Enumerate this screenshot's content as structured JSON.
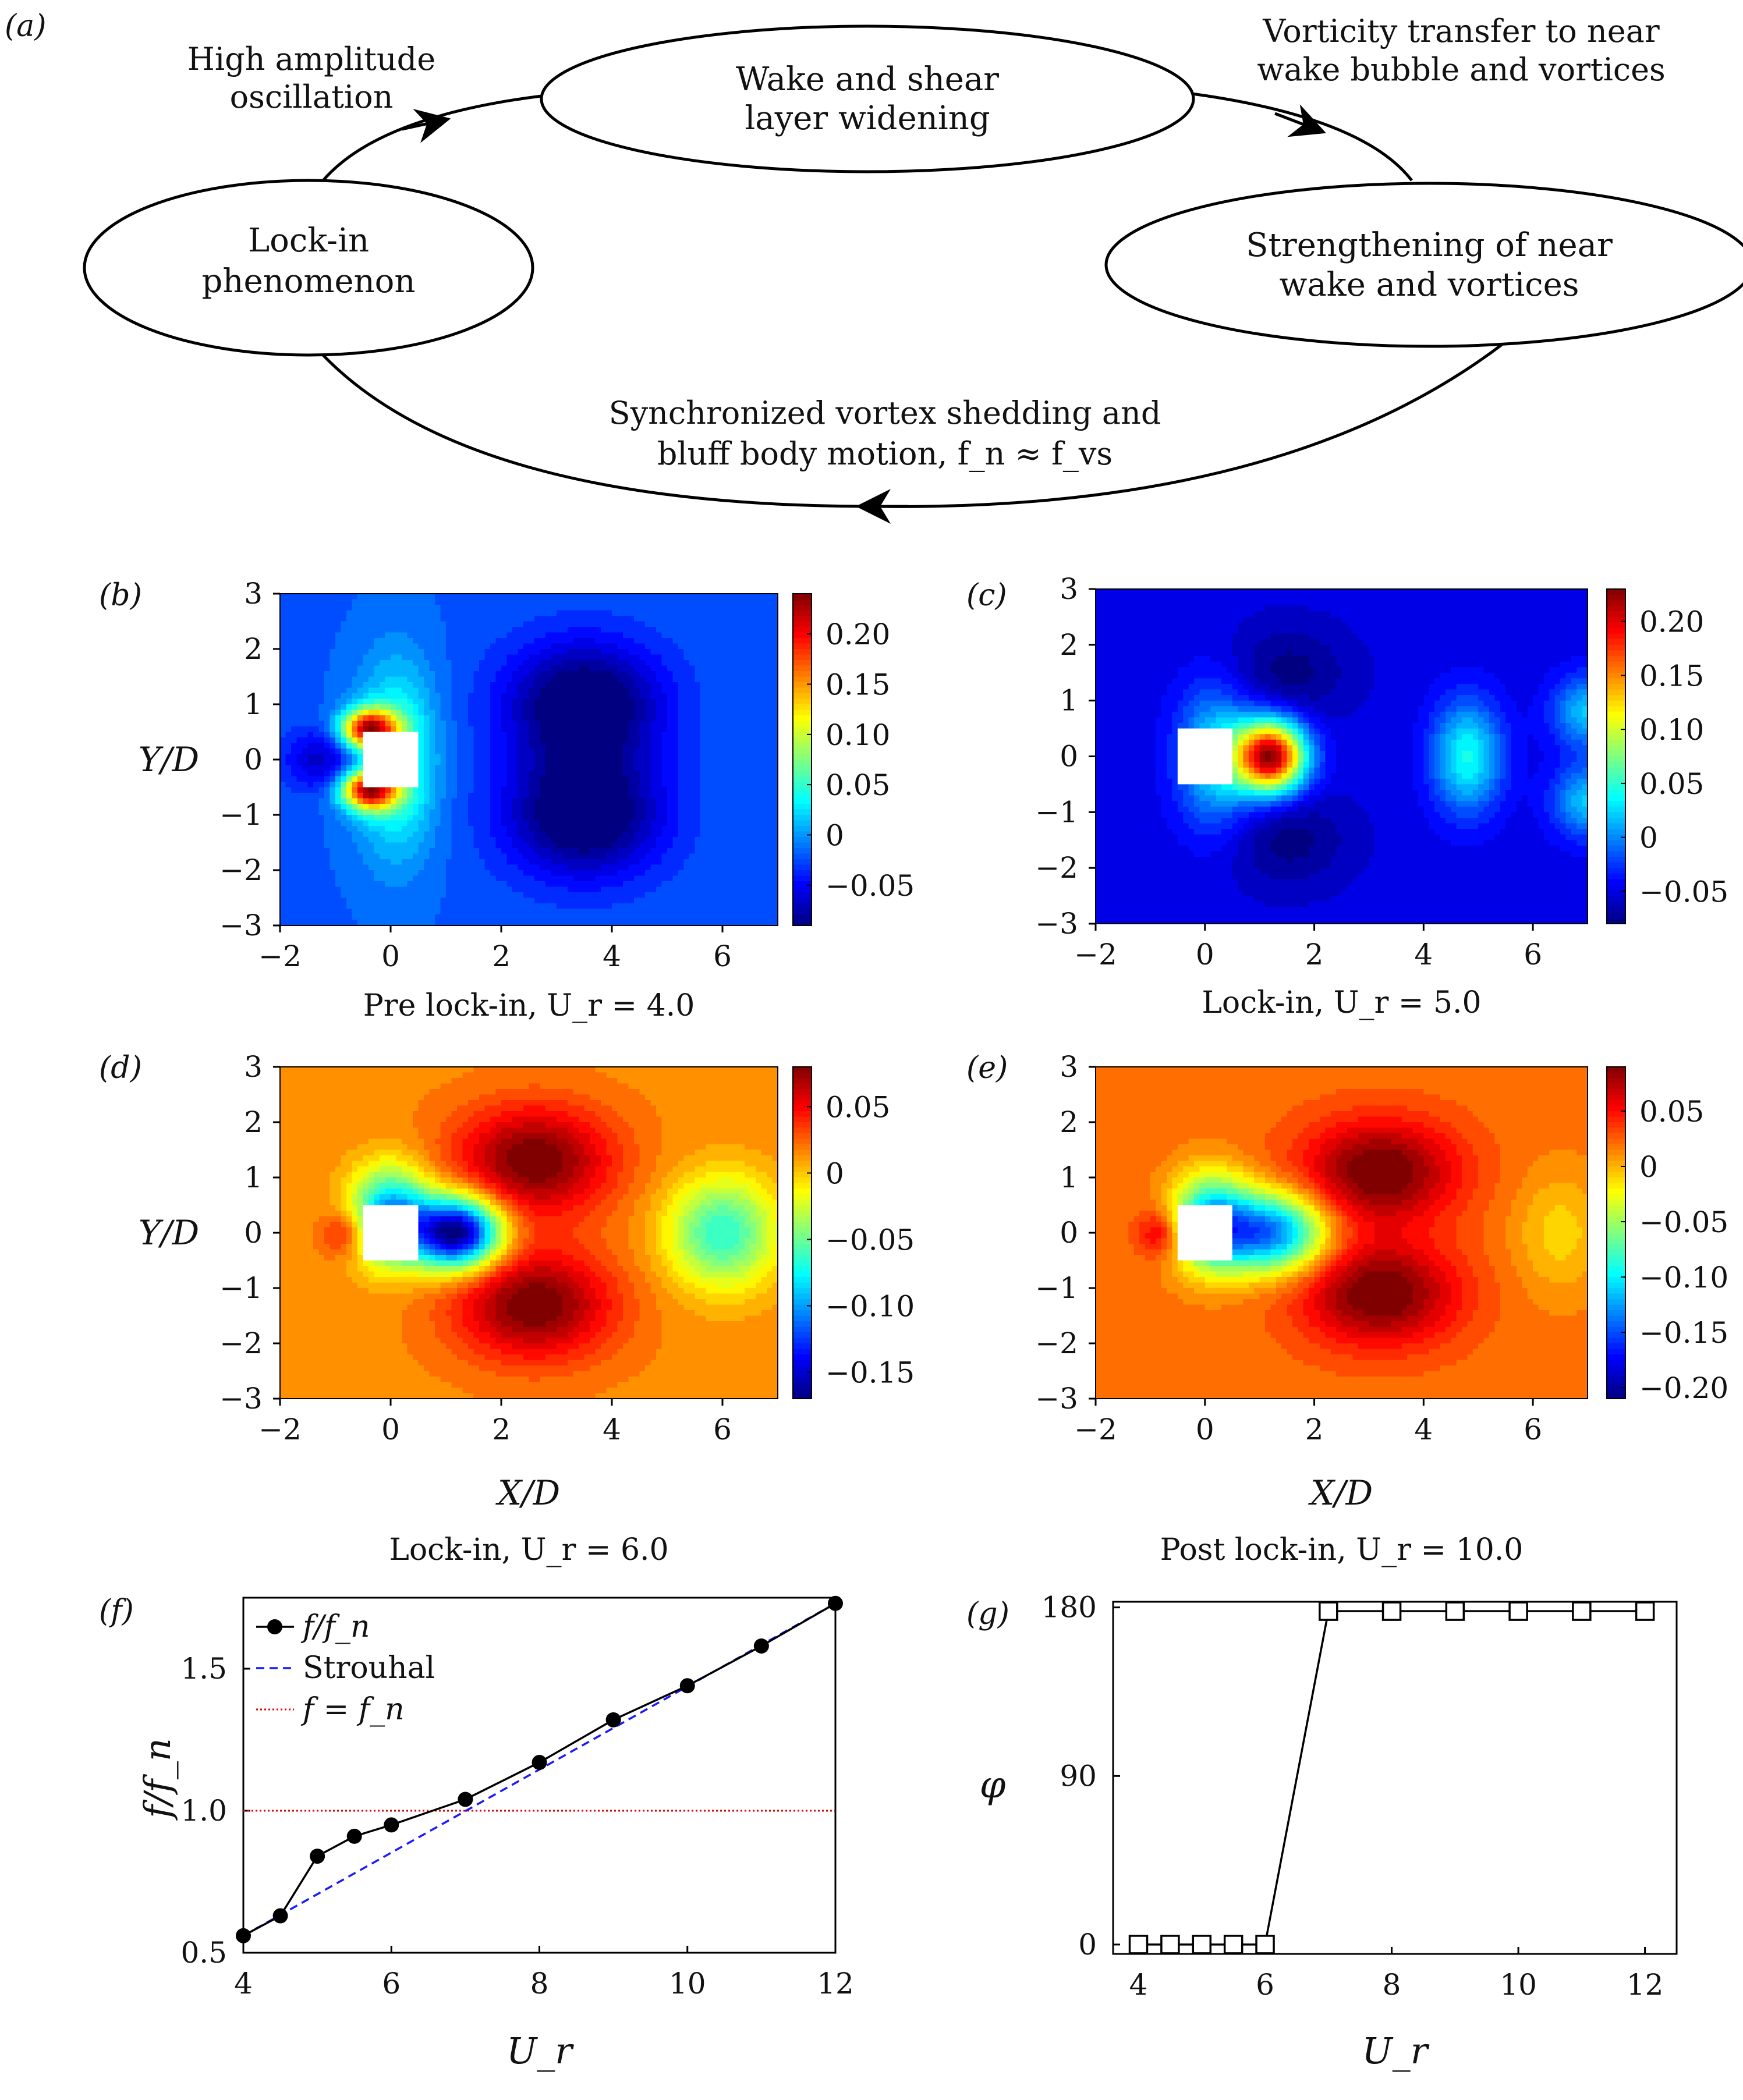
{
  "panel_labels": [
    "(a)",
    "(b)",
    "(c)",
    "(d)",
    "(e)",
    "(f)",
    "(g)"
  ],
  "cycle_diagram": {
    "nodes": [
      {
        "id": "top",
        "lines": [
          "Wake and shear",
          "layer widening"
        ]
      },
      {
        "id": "right",
        "lines": [
          "Strengthening of near",
          "wake and vortices"
        ]
      },
      {
        "id": "left",
        "lines": [
          "Lock-in",
          "phenomenon"
        ]
      }
    ],
    "edge_labels": {
      "left_to_top": [
        "High amplitude",
        "oscillation"
      ],
      "top_to_right": [
        "Vorticity transfer to near",
        "wake bubble and vortices"
      ],
      "right_to_left": [
        "Synchronized vortex shedding and",
        "bluff body motion, f_n ≈ f_vs"
      ]
    }
  },
  "chart_data": [
    {
      "id": "b",
      "type": "heatmap",
      "caption": "Pre lock-in, U_r = 4.0",
      "xlabel": "",
      "ylabel": "Y/D",
      "xlim": [
        -2,
        7
      ],
      "ylim": [
        -3,
        3
      ],
      "x_ticks": [
        "−2",
        "0",
        "2",
        "4",
        "6"
      ],
      "y_ticks": [
        "3",
        "2",
        "1",
        "0",
        "−1",
        "−2",
        "−3"
      ],
      "colorbar": {
        "range": [
          -0.09,
          0.24
        ],
        "ticks": [
          "0.20",
          "0.15",
          "0.10",
          "0.05",
          "0",
          "−0.05"
        ],
        "tick_values": [
          0.2,
          0.15,
          0.1,
          0.05,
          0,
          -0.05
        ]
      },
      "body": "square cylinder centered at (0,0), side 1"
    },
    {
      "id": "c",
      "type": "heatmap",
      "caption": "Lock-in, U_r = 5.0",
      "xlabel": "",
      "ylabel": "",
      "xlim": [
        -2,
        7
      ],
      "ylim": [
        -3,
        3
      ],
      "x_ticks": [
        "−2",
        "0",
        "2",
        "4",
        "6"
      ],
      "y_ticks": [
        "3",
        "2",
        "1",
        "0",
        "−1",
        "−2",
        "−3"
      ],
      "colorbar": {
        "range": [
          -0.08,
          0.23
        ],
        "ticks": [
          "0.20",
          "0.15",
          "0.10",
          "0.05",
          "0",
          "−0.05"
        ],
        "tick_values": [
          0.2,
          0.15,
          0.1,
          0.05,
          0,
          -0.05
        ]
      }
    },
    {
      "id": "d",
      "type": "heatmap",
      "caption": "Lock-in, U_r = 6.0",
      "xlabel": "X/D",
      "ylabel": "Y/D",
      "xlim": [
        -2,
        7
      ],
      "ylim": [
        -3,
        3
      ],
      "x_ticks": [
        "−2",
        "0",
        "2",
        "4",
        "6"
      ],
      "y_ticks": [
        "3",
        "2",
        "1",
        "0",
        "−1",
        "−2",
        "−3"
      ],
      "colorbar": {
        "range": [
          -0.17,
          0.08
        ],
        "ticks": [
          "0.05",
          "0",
          "−0.05",
          "−0.10",
          "−0.15"
        ],
        "tick_values": [
          0.05,
          0,
          -0.05,
          -0.1,
          -0.15
        ]
      }
    },
    {
      "id": "e",
      "type": "heatmap",
      "caption": "Post lock-in, U_r = 10.0",
      "xlabel": "X/D",
      "ylabel": "",
      "xlim": [
        -2,
        7
      ],
      "ylim": [
        -3,
        3
      ],
      "x_ticks": [
        "−2",
        "0",
        "2",
        "4",
        "6"
      ],
      "y_ticks": [
        "3",
        "2",
        "1",
        "0",
        "−1",
        "−2",
        "−3"
      ],
      "colorbar": {
        "range": [
          -0.21,
          0.09
        ],
        "ticks": [
          "0.05",
          "0",
          "−0.05",
          "−0.10",
          "−0.15",
          "−0.20"
        ],
        "tick_values": [
          0.05,
          0,
          -0.05,
          -0.1,
          -0.15,
          -0.2
        ]
      }
    },
    {
      "id": "f",
      "type": "line",
      "xlabel": "U_r",
      "ylabel": "f/f_n",
      "xlim": [
        4,
        12
      ],
      "ylim": [
        0.5,
        1.75
      ],
      "x_ticks": [
        4,
        6,
        8,
        10,
        12
      ],
      "y_ticks": [
        0.5,
        1.0,
        1.5
      ],
      "y_tick_labels": [
        "0.5",
        "1.0",
        "1.5"
      ],
      "legend": {
        "placement": "top-left",
        "entries": [
          "f/f_n",
          "Strouhal",
          "f = f_n"
        ]
      },
      "series": [
        {
          "name": "f/f_n",
          "color": "#000000",
          "marker": "filled-circle",
          "x": [
            4,
            4.5,
            5,
            5.5,
            6,
            7,
            8,
            9,
            10,
            11,
            12
          ],
          "y": [
            0.56,
            0.63,
            0.84,
            0.91,
            0.95,
            1.04,
            1.17,
            1.32,
            1.44,
            1.58,
            1.73
          ]
        },
        {
          "name": "Strouhal",
          "color": "#1a1aff",
          "style": "dashed",
          "x": [
            4,
            12
          ],
          "y": [
            0.56,
            1.73
          ]
        },
        {
          "name": "f = f_n",
          "color": "#e00000",
          "style": "dotted",
          "x": [
            4,
            12
          ],
          "y": [
            1.0,
            1.0
          ]
        }
      ]
    },
    {
      "id": "g",
      "type": "line",
      "xlabel": "U_r",
      "ylabel": "φ",
      "xlim": [
        3.6,
        12.5
      ],
      "ylim": [
        -5,
        183
      ],
      "x_ticks": [
        4,
        6,
        8,
        10,
        12
      ],
      "y_ticks": [
        0,
        90,
        180
      ],
      "series": [
        {
          "name": "",
          "color": "#000000",
          "marker": "open-square",
          "x": [
            4,
            4.5,
            5,
            5.5,
            6,
            7,
            8,
            9,
            10,
            11,
            12
          ],
          "y": [
            0,
            0,
            0,
            0,
            0,
            178,
            178,
            178,
            178,
            178,
            178
          ]
        }
      ]
    }
  ],
  "colors": {
    "jet_low": "#00007f",
    "jet_mid": "#7fff7f",
    "jet_high": "#7f0000",
    "strouhal": "#1a1aff",
    "fn_line": "#e00000"
  }
}
